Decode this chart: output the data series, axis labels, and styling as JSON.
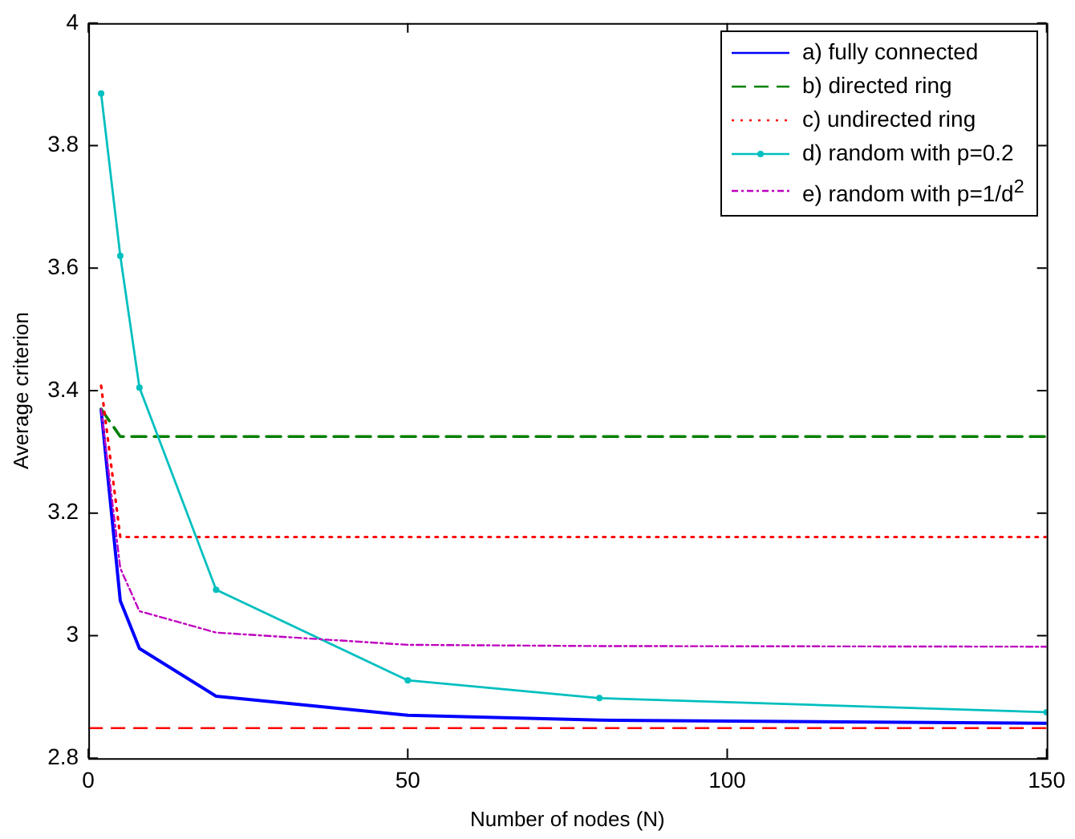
{
  "chart_data": {
    "type": "line",
    "xlabel": "Number of nodes (N)",
    "ylabel": "Average criterion",
    "xlim": [
      0,
      150
    ],
    "xticks": [
      0,
      50,
      100,
      150
    ],
    "ylim": [
      2.8,
      4
    ],
    "yticks": [
      2.8,
      3,
      3.2,
      3.4,
      3.6,
      3.8,
      4
    ],
    "grid": false,
    "legend": "top right",
    "series": [
      {
        "name": "a) fully connected",
        "color": "#0000ff",
        "line_style": "solid",
        "marker": "none",
        "x": [
          2,
          5,
          8,
          20,
          50,
          80,
          150
        ],
        "values": [
          3.369,
          3.057,
          2.979,
          2.901,
          2.87,
          2.862,
          2.857
        ]
      },
      {
        "name": "b) directed ring",
        "color": "#008000",
        "line_style": "dashed",
        "marker": "none",
        "x": [
          2,
          5,
          8,
          20,
          50,
          80,
          150
        ],
        "values": [
          3.37,
          3.325,
          3.325,
          3.325,
          3.325,
          3.325,
          3.325
        ]
      },
      {
        "name": "c) undirected ring",
        "color": "#ff0000",
        "line_style": "dotted",
        "marker": "none",
        "x": [
          2,
          5,
          8,
          20,
          50,
          80,
          150
        ],
        "values": [
          3.408,
          3.161,
          3.161,
          3.161,
          3.161,
          3.161,
          3.161
        ]
      },
      {
        "name": "d) random with p=0.2",
        "color": "#00bfbf",
        "line_style": "solid",
        "marker": "circle",
        "x": [
          2,
          5,
          8,
          20,
          50,
          80,
          150
        ],
        "values": [
          3.885,
          3.62,
          3.405,
          3.075,
          2.927,
          2.898,
          2.875
        ]
      },
      {
        "name": "e) random with p=1/d$^{2}$",
        "color": "#bf00bf",
        "line_style": "dashdot",
        "marker": "none",
        "x": [
          2,
          5,
          8,
          20,
          50,
          80,
          150
        ],
        "values": [
          3.37,
          3.11,
          3.04,
          3.005,
          2.985,
          2.983,
          2.982
        ]
      }
    ],
    "ref_lines": [
      {
        "axis": "y",
        "value": 2.849,
        "color": "#ff0000",
        "line_style": "dashed"
      }
    ]
  }
}
